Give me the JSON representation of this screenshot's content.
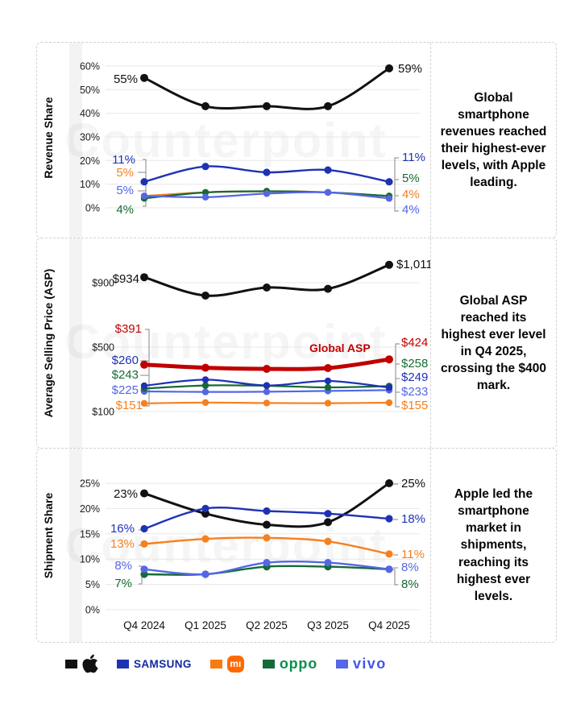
{
  "watermark": "Counterpoint",
  "panels": [
    {
      "note": "Global smartphone revenues reached their highest-ever levels, with Apple leading."
    },
    {
      "note": "Global ASP reached its highest ever level in Q4 2025, crossing the $400 mark."
    },
    {
      "note": "Apple led the smartphone market in shipments, reaching its highest ever levels."
    }
  ],
  "legend": {
    "items": [
      {
        "name": "apple",
        "swatch": "#111111",
        "logo": "apple"
      },
      {
        "name": "samsung",
        "swatch": "#1E32B4",
        "logo": "text",
        "logo_text": "SAMSUNG",
        "logo_color": "#1428A0"
      },
      {
        "name": "xiaomi",
        "swatch": "#F87B0E",
        "logo": "mi-badge",
        "badge_text": "mı",
        "badge_color": "#FF6900"
      },
      {
        "name": "oppo",
        "swatch": "#156B35",
        "logo": "text",
        "logo_text": "oppo",
        "logo_color": "#0B8F4D"
      },
      {
        "name": "vivo",
        "swatch": "#5566E6",
        "logo": "text",
        "logo_text": "vivo",
        "logo_color": "#4155E8"
      }
    ]
  },
  "chart_data": [
    {
      "type": "line",
      "title": "Revenue Share",
      "ylabel": "Revenue Share",
      "x_categories": [
        "Q4 2024",
        "Q1 2025",
        "Q2 2025",
        "Q3 2025",
        "Q4 2025"
      ],
      "show_x_labels": false,
      "grid": true,
      "ylim": [
        0,
        60
      ],
      "tick_x": 78,
      "yticks": [
        {
          "v": 60,
          "label": "60%"
        },
        {
          "v": 50,
          "label": "50%"
        },
        {
          "v": 40,
          "label": "40%"
        },
        {
          "v": 30,
          "label": "30%"
        },
        {
          "v": 20,
          "label": "20%"
        },
        {
          "v": 10,
          "label": "10%"
        },
        {
          "v": 0,
          "label": "0%"
        }
      ],
      "series": [
        {
          "name": "Apple",
          "color": "#111111",
          "width": 3,
          "r": 5,
          "values": [
            55,
            43,
            43,
            43,
            59
          ]
        },
        {
          "name": "Xiaomi",
          "color": "#F5801F",
          "width": 2.2,
          "r": 4.2,
          "values": [
            5,
            6.5,
            7,
            6.5,
            4
          ]
        },
        {
          "name": "Oppo",
          "color": "#156B35",
          "width": 2.2,
          "r": 4.2,
          "values": [
            4,
            6.5,
            7,
            6.5,
            5
          ]
        },
        {
          "name": "vivo",
          "color": "#5566E6",
          "width": 2.2,
          "r": 4.2,
          "values": [
            5,
            4.5,
            6,
            6.5,
            4
          ]
        },
        {
          "name": "Samsung",
          "color": "#1E32B4",
          "width": 2.4,
          "r": 4.6,
          "values": [
            11,
            17.5,
            15,
            16,
            11
          ]
        }
      ],
      "annotations": {
        "left": [
          {
            "text": "55%",
            "color": "#111111",
            "x": 125,
            "y": 50,
            "size": 15
          },
          {
            "text": "11%",
            "color": "#1E32B4",
            "x": 122,
            "y": 150,
            "size": 15
          },
          {
            "text": "5%",
            "color": "#F5801F",
            "x": 120,
            "y": 166,
            "size": 15
          },
          {
            "text": "5%",
            "color": "#5566E6",
            "x": 120,
            "y": 188,
            "size": 15
          },
          {
            "text": "4%",
            "color": "#156B35",
            "x": 120,
            "y": 212,
            "size": 15
          }
        ],
        "right": [
          {
            "text": "59%",
            "color": "#111111",
            "x": 448,
            "y": 37,
            "size": 15
          },
          {
            "text": "11%",
            "color": "#1E32B4",
            "x": 453,
            "y": 147,
            "size": 15
          },
          {
            "text": "5%",
            "color": "#156B35",
            "x": 453,
            "y": 173,
            "size": 15
          },
          {
            "text": "4%",
            "color": "#F5801F",
            "x": 453,
            "y": 193,
            "size": 15
          },
          {
            "text": "4%",
            "color": "#5566E6",
            "x": 453,
            "y": 212,
            "size": 15
          }
        ],
        "inline": []
      },
      "connectors": [
        "131,145 135,145 135,203 131,203",
        "125,161 135,161",
        "125,184 135,184",
        "449,143 444,143 444,209 449,209",
        "444,170 449,170",
        "444,190 449,190"
      ]
    },
    {
      "type": "line",
      "title": "Average Selling Price (ASP)",
      "ylabel": "Average Selling Price (ASP)",
      "x_categories": [
        "Q4 2024",
        "Q1 2025",
        "Q2 2025",
        "Q3 2025",
        "Q4 2025"
      ],
      "show_x_labels": false,
      "grid": true,
      "ylim": [
        100,
        1100
      ],
      "tick_x": 96,
      "yticks": [
        {
          "v": 900,
          "label": "$900"
        },
        {
          "v": 500,
          "label": "$500"
        },
        {
          "v": 100,
          "label": "$100"
        }
      ],
      "series": [
        {
          "name": "Apple",
          "color": "#111111",
          "width": 3,
          "r": 5,
          "values": [
            934,
            820,
            870,
            862,
            1011
          ]
        },
        {
          "name": "vivo",
          "color": "#5566E6",
          "width": 2.2,
          "r": 4.2,
          "values": [
            225,
            222,
            223,
            228,
            233
          ]
        },
        {
          "name": "Xiaomi",
          "color": "#F5801F",
          "width": 2.2,
          "r": 4.2,
          "values": [
            151,
            156,
            153,
            152,
            155
          ]
        },
        {
          "name": "Oppo",
          "color": "#156B35",
          "width": 2.2,
          "r": 4.2,
          "values": [
            243,
            262,
            260,
            250,
            258
          ]
        },
        {
          "name": "Samsung",
          "color": "#1E32B4",
          "width": 2.2,
          "r": 4.2,
          "values": [
            260,
            298,
            262,
            290,
            249
          ]
        },
        {
          "name": "Global ASP",
          "color": "#C00000",
          "width": 5,
          "r": 5,
          "values": [
            391,
            372,
            365,
            370,
            424
          ]
        }
      ],
      "annotations": {
        "left": [
          {
            "text": "$934",
            "color": "#111111",
            "x": 127,
            "y": 55,
            "size": 15
          },
          {
            "text": "$391",
            "color": "#C00000",
            "x": 130,
            "y": 117,
            "size": 15
          },
          {
            "text": "$260",
            "color": "#1E32B4",
            "x": 126,
            "y": 156,
            "size": 15
          },
          {
            "text": "$243",
            "color": "#156B35",
            "x": 126,
            "y": 174,
            "size": 15
          },
          {
            "text": "$225",
            "color": "#5566E6",
            "x": 126,
            "y": 193,
            "size": 15
          },
          {
            "text": "$151",
            "color": "#F5801F",
            "x": 131,
            "y": 212,
            "size": 15
          }
        ],
        "right": [
          {
            "text": "$1,011",
            "color": "#111111",
            "x": 446,
            "y": 37,
            "size": 15
          },
          {
            "text": "$424",
            "color": "#C00000",
            "x": 452,
            "y": 134,
            "size": 15
          },
          {
            "text": "$258",
            "color": "#156B35",
            "x": 452,
            "y": 160,
            "size": 15
          },
          {
            "text": "$249",
            "color": "#1E32B4",
            "x": 452,
            "y": 177,
            "size": 15
          },
          {
            "text": "$233",
            "color": "#5566E6",
            "x": 452,
            "y": 195,
            "size": 15
          },
          {
            "text": "$155",
            "color": "#F5801F",
            "x": 452,
            "y": 212,
            "size": 15
          }
        ],
        "inline": [
          {
            "text": "Global ASP",
            "color": "#C00000",
            "x": 338,
            "y": 141,
            "size": 14,
            "bold": true
          }
        ]
      },
      "connectors": [
        "134,113 139,113 139,208 134,208",
        "128,152 139,152",
        "128,170 139,170",
        "128,189 139,189",
        "450,131 445,131 445,209 450,209",
        "445,156 450,156",
        "445,174 450,174",
        "445,191 450,191"
      ]
    },
    {
      "type": "line",
      "title": "Shipment Share",
      "ylabel": "Shipment Share",
      "x_categories": [
        "Q4 2024",
        "Q1 2025",
        "Q2 2025",
        "Q3 2025",
        "Q4 2025"
      ],
      "show_x_labels": true,
      "grid": true,
      "ylim": [
        0,
        25
      ],
      "tick_x": 78,
      "yticks": [
        {
          "v": 25,
          "label": "25%"
        },
        {
          "v": 20,
          "label": "20%"
        },
        {
          "v": 15,
          "label": "15%"
        },
        {
          "v": 10,
          "label": "10%"
        },
        {
          "v": 5,
          "label": "5%"
        },
        {
          "v": 0,
          "label": "0%"
        }
      ],
      "series": [
        {
          "name": "Apple",
          "color": "#111111",
          "width": 3,
          "r": 5,
          "values": [
            23,
            19,
            16.8,
            17.3,
            25
          ]
        },
        {
          "name": "Xiaomi",
          "color": "#F5801F",
          "width": 2.4,
          "r": 4.6,
          "values": [
            13,
            14,
            14.2,
            13.5,
            11
          ]
        },
        {
          "name": "Oppo",
          "color": "#156B35",
          "width": 2.4,
          "r": 4.6,
          "values": [
            7,
            7,
            8.5,
            8.5,
            8
          ]
        },
        {
          "name": "vivo",
          "color": "#5566E6",
          "width": 2.4,
          "r": 4.6,
          "values": [
            8,
            7,
            9.3,
            9.3,
            8
          ]
        },
        {
          "name": "Samsung",
          "color": "#1E32B4",
          "width": 2.4,
          "r": 4.6,
          "values": [
            16,
            20,
            19.5,
            19,
            18
          ]
        }
      ],
      "annotations": {
        "left": [
          {
            "text": "23%",
            "color": "#111111",
            "x": 125,
            "y": 61,
            "size": 15
          },
          {
            "text": "16%",
            "color": "#1E32B4",
            "x": 121,
            "y": 104,
            "size": 15
          },
          {
            "text": "13%",
            "color": "#F5801F",
            "x": 121,
            "y": 123,
            "size": 15
          },
          {
            "text": "8%",
            "color": "#5566E6",
            "x": 118,
            "y": 150,
            "size": 15
          },
          {
            "text": "7%",
            "color": "#156B35",
            "x": 118,
            "y": 172,
            "size": 15
          }
        ],
        "right": [
          {
            "text": "25%",
            "color": "#111111",
            "x": 452,
            "y": 48,
            "size": 15
          },
          {
            "text": "18%",
            "color": "#1E32B4",
            "x": 452,
            "y": 92,
            "size": 15
          },
          {
            "text": "11%",
            "color": "#F5801F",
            "x": 452,
            "y": 136,
            "size": 15
          },
          {
            "text": "8%",
            "color": "#5566E6",
            "x": 452,
            "y": 152,
            "size": 15
          },
          {
            "text": "8%",
            "color": "#156B35",
            "x": 452,
            "y": 173,
            "size": 15
          }
        ],
        "inline": []
      },
      "connectors": [
        "128,57 133,57",
        "126,101 132,101",
        "126,120 132,120",
        "126,146 130,146 130,150",
        "126,168 130,168 130,158",
        "442,44 448,44",
        "442,88 448,88",
        "442,132 448,132",
        "442,148 448,148",
        "441,150 444,150 444,169 448,169"
      ]
    }
  ]
}
